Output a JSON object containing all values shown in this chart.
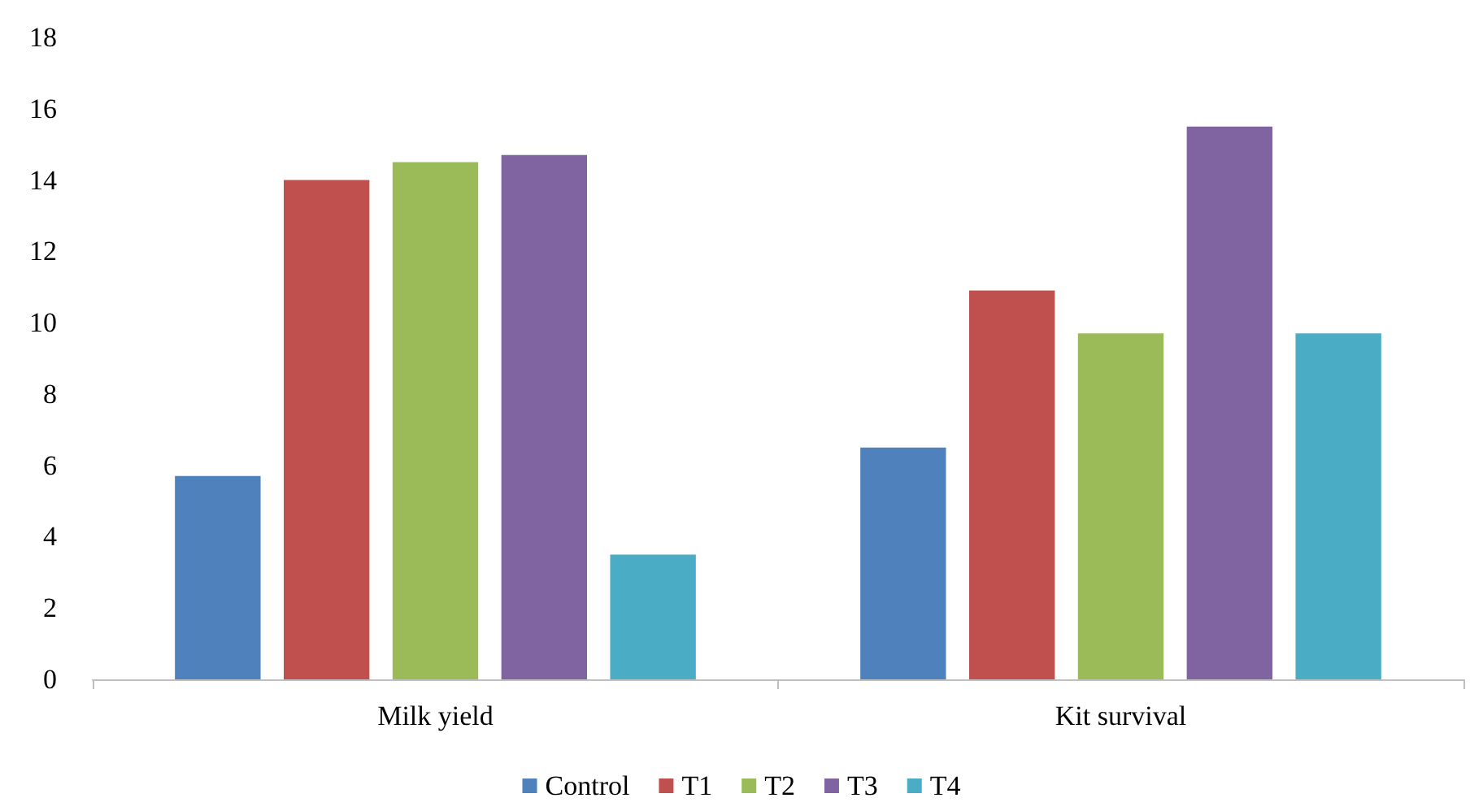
{
  "chart_data": {
    "type": "bar",
    "categories": [
      "Milk yield",
      "Kit survival"
    ],
    "series": [
      {
        "name": "Control",
        "color": "#4f81bd",
        "values": [
          5.7,
          6.5
        ]
      },
      {
        "name": "T1",
        "color": "#c0504d",
        "values": [
          14.0,
          10.9
        ]
      },
      {
        "name": "T2",
        "color": "#9bbb59",
        "values": [
          14.5,
          9.7
        ]
      },
      {
        "name": "T3",
        "color": "#8064a2",
        "values": [
          14.7,
          15.5
        ]
      },
      {
        "name": "T4",
        "color": "#4bacc6",
        "values": [
          3.5,
          9.7
        ]
      }
    ],
    "ylim": [
      0,
      18
    ],
    "yticks": [
      0,
      2,
      4,
      6,
      8,
      10,
      12,
      14,
      16,
      18
    ],
    "grid": false,
    "legend": "bottom"
  }
}
